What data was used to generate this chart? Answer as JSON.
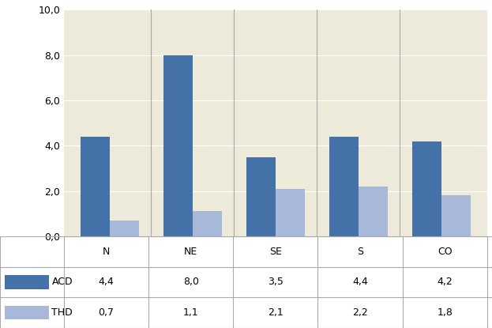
{
  "categories": [
    "N",
    "NE",
    "SE",
    "S",
    "CO"
  ],
  "acd_values": [
    4.4,
    8.0,
    3.5,
    4.4,
    4.2
  ],
  "thd_values": [
    0.7,
    1.1,
    2.1,
    2.2,
    1.8
  ],
  "acd_color": "#4472a8",
  "thd_color": "#a8b8d8",
  "background_color": "#eeeada",
  "ylim": [
    0,
    10
  ],
  "yticks": [
    0.0,
    2.0,
    4.0,
    6.0,
    8.0,
    10.0
  ],
  "ytick_labels": [
    "0,0",
    "2,0",
    "4,0",
    "6,0",
    "8,0",
    "10,0"
  ],
  "acd_label": "ACD",
  "thd_label": "THD",
  "bar_width": 0.35,
  "table_acd": [
    "4,4",
    "8,0",
    "3,5",
    "4,4",
    "4,2"
  ],
  "table_thd": [
    "0,7",
    "1,1",
    "2,1",
    "2,2",
    "1,8"
  ],
  "line_color": "#aaaaaa",
  "fig_width": 6.23,
  "fig_height": 4.15
}
